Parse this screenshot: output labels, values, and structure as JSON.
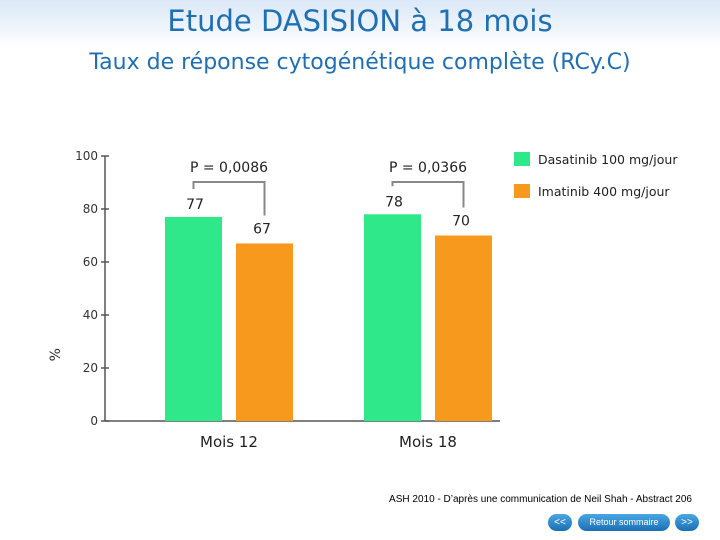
{
  "slide": {
    "title": "Etude DASISION à 18 mois",
    "subtitle": "Taux de réponse cytogénétique complète (RCy.C)"
  },
  "chart_data": {
    "type": "bar",
    "categories": [
      "Mois 12",
      "Mois 18"
    ],
    "series": [
      {
        "name": "Dasatinib 100 mg/jour",
        "values": [
          77,
          78
        ],
        "color": "#2ee88a"
      },
      {
        "name": "Imatinib 400 mg/jour",
        "values": [
          67,
          70
        ],
        "color": "#f7991d"
      }
    ],
    "ylabel": "%",
    "ylim": [
      0,
      100
    ],
    "yticks": [
      0,
      20,
      40,
      60,
      80,
      100
    ],
    "legend_position": "top-right",
    "annotations": [
      {
        "category": "Mois 12",
        "text": "P = 0,0086"
      },
      {
        "category": "Mois 18",
        "text": "P = 0,0366"
      }
    ],
    "grid": false
  },
  "footer": {
    "note": "ASH 2010 - D’après une communication de Neil Shah - Abstract 206",
    "prev_label": "<<",
    "home_label": "Retour sommaire",
    "next_label": ">>"
  }
}
